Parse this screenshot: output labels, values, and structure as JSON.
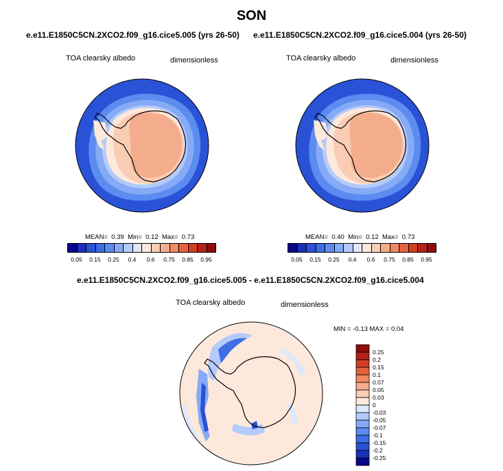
{
  "title": "SON",
  "panels": [
    {
      "case": "e.e11.E1850C5CN.2XCO2.f09_g16.cice5.005 (yrs 26-50)",
      "variable": "TOA clearsky albedo",
      "units": "dimensionless",
      "stats": {
        "mean_label": "MEAN=",
        "mean": "0.39",
        "min_label": "Min=",
        "min": "0.12",
        "max_label": "Max=",
        "max": "0.73"
      }
    },
    {
      "case": "e.e11.E1850C5CN.2XCO2.f09_g16.cice5.004 (yrs 26-50)",
      "variable": "TOA clearsky albedo",
      "units": "dimensionless",
      "stats": {
        "mean_label": "MEAN=",
        "mean": "0.40",
        "min_label": "Min=",
        "min": "0.12",
        "max_label": "Max=",
        "max": "0.73"
      }
    }
  ],
  "colorbar": {
    "labels": [
      "0.05",
      "0.15",
      "0.25",
      "0.4",
      "0.6",
      "0.75",
      "0.85",
      "0.95"
    ],
    "colors": [
      "#08088a",
      "#1832b8",
      "#2a52d6",
      "#3d6ee6",
      "#5b8cf0",
      "#86aaf5",
      "#b3cbfa",
      "#dde8fc",
      "#fde8dc",
      "#f9cdb4",
      "#f4ad8c",
      "#ef8a64",
      "#e6623f",
      "#d13e24",
      "#b52218",
      "#8f0e0b"
    ]
  },
  "difference": {
    "title": "e.e11.E1850C5CN.2XCO2.f09_g16.cice5.005 - e.e11.E1850C5CN.2XCO2.f09_g16.cice5.004",
    "variable": "TOA clearsky albedo",
    "units": "dimensionless",
    "minmax": "MIN =  -0.13 MAX =   0.04",
    "colorbar_labels": [
      "0.25",
      "0.2",
      "0.15",
      "0.1",
      "0.07",
      "0.05",
      "0.03",
      "0",
      "-0.03",
      "-0.05",
      "-0.07",
      "-0.1",
      "-0.15",
      "-0.2",
      "-0.25"
    ],
    "colorbar_colors": [
      "#8f0e0b",
      "#b52218",
      "#d13e24",
      "#e6623f",
      "#ef8a64",
      "#f4ad8c",
      "#f9cdb4",
      "#fde8dc",
      "#dde8fc",
      "#b3cbfa",
      "#86aaf5",
      "#5b8cf0",
      "#3d6ee6",
      "#2a52d6",
      "#1832b8",
      "#08088a"
    ]
  }
}
